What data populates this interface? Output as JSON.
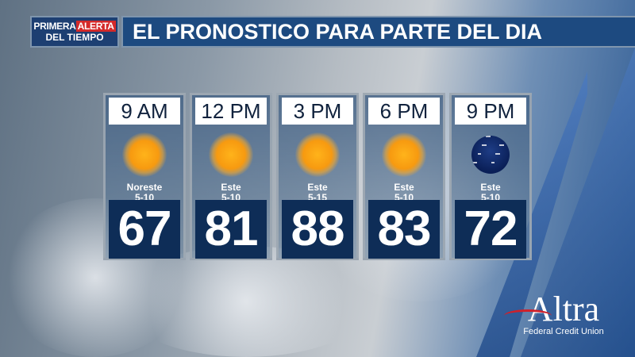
{
  "logo": {
    "line1a": "PRIMERA",
    "line1b": "ALERTA",
    "line2": "DEL TIEMPO"
  },
  "title": "EL PRONOSTICO PARA PARTE DEL DIA",
  "forecast": [
    {
      "time": "9 AM",
      "icon": "sun-icon",
      "wind_dir": "Noreste",
      "wind_speed": "5-10",
      "temp": "67"
    },
    {
      "time": "12 PM",
      "icon": "sun-icon",
      "wind_dir": "Este",
      "wind_speed": "5-10",
      "temp": "81"
    },
    {
      "time": "3 PM",
      "icon": "sun-icon",
      "wind_dir": "Este",
      "wind_speed": "5-15",
      "temp": "88"
    },
    {
      "time": "6 PM",
      "icon": "sun-icon",
      "wind_dir": "Este",
      "wind_speed": "5-10",
      "temp": "83"
    },
    {
      "time": "9 PM",
      "icon": "clear-night-icon",
      "wind_dir": "Este",
      "wind_speed": "5-10",
      "temp": "72"
    }
  ],
  "sponsor": {
    "name": "Altra",
    "tagline": "Federal Credit Union"
  },
  "colors": {
    "title_bg": "#1d4a80",
    "temp_bg": "#0e2d57",
    "alert_red": "#d42a2a"
  }
}
